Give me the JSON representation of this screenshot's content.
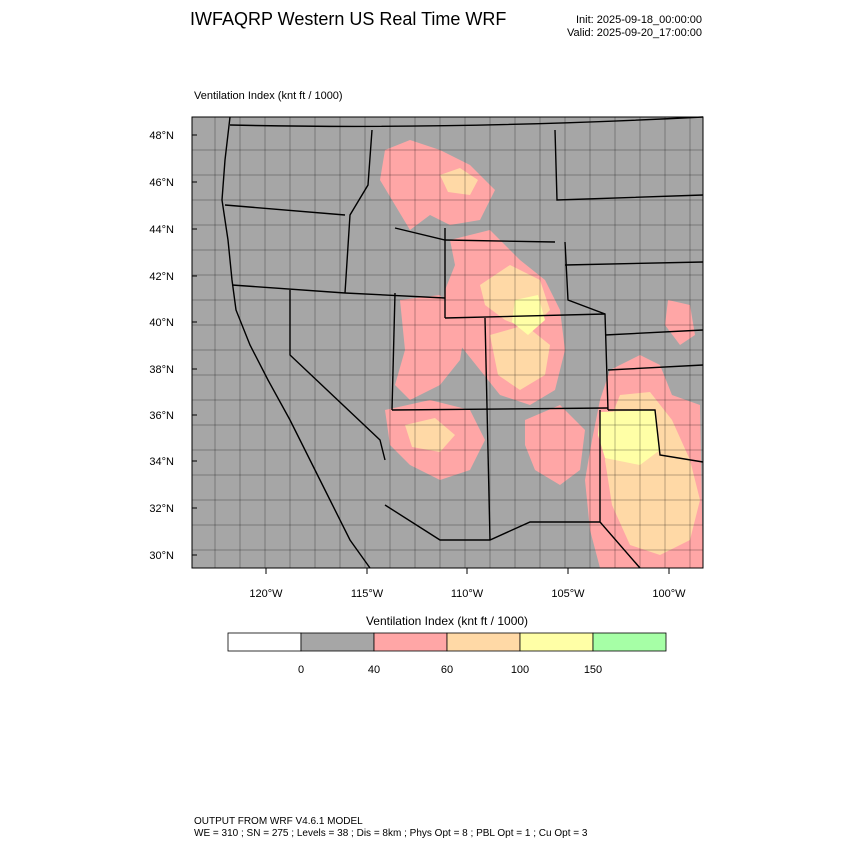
{
  "header": {
    "title": "IWFAQRP Western US Real Time WRF",
    "init": "Init: 2025-09-18_00:00:00",
    "valid": "Valid: 2025-09-20_17:00:00"
  },
  "map": {
    "field_label": "Ventilation Index   (knt ft / 1000)",
    "lat_ticks": [
      "48°N",
      "46°N",
      "44°N",
      "42°N",
      "40°N",
      "38°N",
      "36°N",
      "34°N",
      "32°N",
      "30°N"
    ],
    "lon_ticks": [
      "120°W",
      "115°W",
      "110°W",
      "105°W",
      "100°W"
    ],
    "colors": {
      "background": "#a6a6a6",
      "border": "#000000"
    }
  },
  "colorbar": {
    "title": "Ventilation Index  (knt ft / 1000)",
    "colors": [
      "#ffffff",
      "#a6a6a6",
      "#ffa6a6",
      "#ffd9a6",
      "#ffffa6",
      "#a6ffa6"
    ],
    "labels": [
      "0",
      "40",
      "60",
      "100",
      "150"
    ]
  },
  "footer": {
    "line1": "OUTPUT FROM WRF V4.6.1 MODEL",
    "line2": "WE = 310 ; SN = 275 ; Levels = 38 ; Dis = 8km ; Phys Opt = 8 ; PBL Opt = 1 ; Cu Opt = 3"
  }
}
